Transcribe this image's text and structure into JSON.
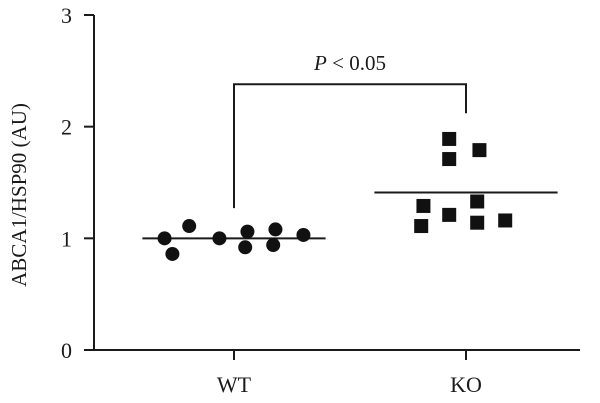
{
  "chart_data": {
    "type": "scatter",
    "ylabel": "ABCA1/HSP90 (AU)",
    "xlabel": "",
    "categories": [
      "WT",
      "KO"
    ],
    "ylim": [
      0,
      3
    ],
    "yticks": [
      0,
      1,
      2,
      3
    ],
    "grid": false,
    "series": [
      {
        "category": "WT",
        "marker": "circle",
        "color": "#111111",
        "points": [
          {
            "x": -0.62,
            "y": 1.0
          },
          {
            "x": -0.55,
            "y": 0.86
          },
          {
            "x": -0.4,
            "y": 1.11
          },
          {
            "x": -0.13,
            "y": 1.0
          },
          {
            "x": 0.1,
            "y": 0.92
          },
          {
            "x": 0.12,
            "y": 1.06
          },
          {
            "x": 0.35,
            "y": 0.94
          },
          {
            "x": 0.37,
            "y": 1.08
          },
          {
            "x": 0.62,
            "y": 1.03
          }
        ],
        "mean": 1.0
      },
      {
        "category": "KO",
        "marker": "square",
        "color": "#111111",
        "points": [
          {
            "x": -0.4,
            "y": 1.11
          },
          {
            "x": -0.38,
            "y": 1.29
          },
          {
            "x": -0.15,
            "y": 1.21
          },
          {
            "x": -0.15,
            "y": 1.71
          },
          {
            "x": -0.15,
            "y": 1.89
          },
          {
            "x": 0.1,
            "y": 1.14
          },
          {
            "x": 0.1,
            "y": 1.33
          },
          {
            "x": 0.12,
            "y": 1.79
          },
          {
            "x": 0.35,
            "y": 1.16
          }
        ],
        "mean": 1.41
      }
    ],
    "annotation": {
      "text_italic": "P",
      "text_rest": " < 0.05",
      "bracket_y": 2.38,
      "left_drop_to": 1.27,
      "right_drop_to": 2.12
    }
  }
}
